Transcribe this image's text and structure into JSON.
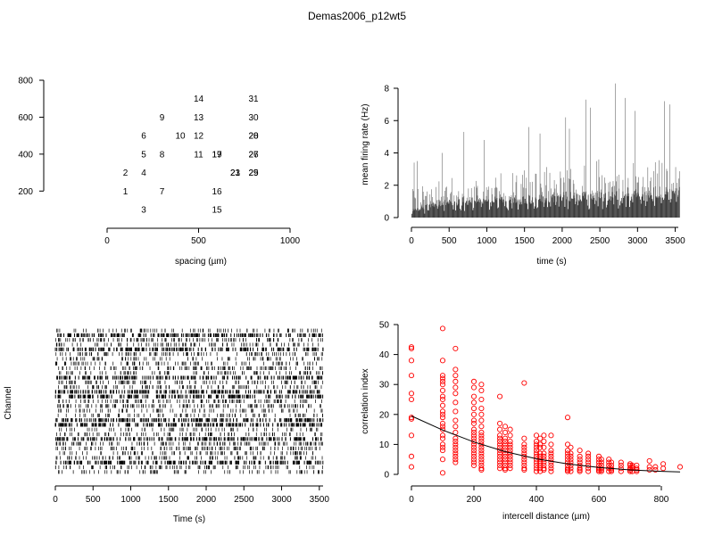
{
  "page": {
    "title": "Demas2006_p12wt5"
  },
  "chart_data": [
    {
      "type": "scatter",
      "panel": "electrode-layout",
      "xlabel": "spacing (µm)",
      "ylabel": "",
      "xlim": [
        0,
        1000
      ],
      "ylim": [
        100,
        800
      ],
      "x_ticks": [
        0,
        500,
        1000
      ],
      "y_ticks": [
        200,
        400,
        600,
        800
      ],
      "points": [
        {
          "label": "1",
          "x": 100,
          "y": 200
        },
        {
          "label": "2",
          "x": 100,
          "y": 300
        },
        {
          "label": "3",
          "x": 200,
          "y": 100
        },
        {
          "label": "4",
          "x": 200,
          "y": 300
        },
        {
          "label": "5",
          "x": 200,
          "y": 400
        },
        {
          "label": "6",
          "x": 200,
          "y": 500
        },
        {
          "label": "7",
          "x": 300,
          "y": 200
        },
        {
          "label": "8",
          "x": 300,
          "y": 400
        },
        {
          "label": "9",
          "x": 300,
          "y": 600
        },
        {
          "label": "10",
          "x": 400,
          "y": 500
        },
        {
          "label": "11",
          "x": 500,
          "y": 400
        },
        {
          "label": "12",
          "x": 500,
          "y": 500
        },
        {
          "label": "13",
          "x": 500,
          "y": 600
        },
        {
          "label": "14",
          "x": 500,
          "y": 700
        },
        {
          "label": "15",
          "x": 600,
          "y": 100
        },
        {
          "label": "16",
          "x": 600,
          "y": 200
        },
        {
          "label": "17",
          "x": 600,
          "y": 400
        },
        {
          "label": "19",
          "x": 600,
          "y": 400
        },
        {
          "label": "21",
          "x": 700,
          "y": 300
        },
        {
          "label": "23",
          "x": 700,
          "y": 300
        },
        {
          "label": "20",
          "x": 800,
          "y": 500
        },
        {
          "label": "28",
          "x": 800,
          "y": 500
        },
        {
          "label": "25",
          "x": 800,
          "y": 300
        },
        {
          "label": "29",
          "x": 800,
          "y": 300
        },
        {
          "label": "26",
          "x": 800,
          "y": 400
        },
        {
          "label": "27",
          "x": 800,
          "y": 400
        },
        {
          "label": "30",
          "x": 800,
          "y": 600
        },
        {
          "label": "31",
          "x": 800,
          "y": 700
        }
      ]
    },
    {
      "type": "bar",
      "panel": "firing-rate",
      "xlabel": "time (s)",
      "ylabel": "mean firing rate (Hz)",
      "xlim": [
        0,
        3600
      ],
      "ylim": [
        0,
        8.5
      ],
      "x_ticks": [
        0,
        500,
        1000,
        1500,
        2000,
        2500,
        3000,
        3500
      ],
      "y_ticks": [
        0,
        2,
        4,
        6,
        8
      ],
      "generated": {
        "bin_seconds": 10,
        "dark_low": [
          [
            0,
            0.5
          ],
          [
            400,
            1.2
          ],
          [
            1000,
            1.5
          ],
          [
            1500,
            1.4
          ],
          [
            2000,
            1.6
          ],
          [
            2500,
            1.7
          ],
          [
            3000,
            1.9
          ],
          [
            3550,
            2.0
          ]
        ],
        "typical_high": [
          [
            0,
            2.0
          ],
          [
            500,
            2.5
          ],
          [
            1000,
            3.0
          ],
          [
            1500,
            3.3
          ],
          [
            2000,
            3.6
          ],
          [
            2500,
            3.9
          ],
          [
            3000,
            4.0
          ],
          [
            3550,
            4.2
          ]
        ],
        "peaks": [
          {
            "t": 30,
            "v": 3.4
          },
          {
            "t": 70,
            "v": 3.5
          },
          {
            "t": 395,
            "v": 4.0
          },
          {
            "t": 690,
            "v": 5.3
          },
          {
            "t": 960,
            "v": 4.8
          },
          {
            "t": 1550,
            "v": 5.6
          },
          {
            "t": 1700,
            "v": 5.2
          },
          {
            "t": 2040,
            "v": 6.2
          },
          {
            "t": 2090,
            "v": 5.5
          },
          {
            "t": 2310,
            "v": 7.3
          },
          {
            "t": 2370,
            "v": 6.8
          },
          {
            "t": 2700,
            "v": 8.3
          },
          {
            "t": 2830,
            "v": 7.4
          },
          {
            "t": 2960,
            "v": 6.6
          },
          {
            "t": 3350,
            "v": 7.2
          },
          {
            "t": 3420,
            "v": 7.0
          },
          {
            "t": 3560,
            "v": 7.3
          }
        ]
      }
    },
    {
      "type": "raster",
      "panel": "spike-raster",
      "xlabel": "Time (s)",
      "ylabel": "Channel",
      "xlim": [
        0,
        3550
      ],
      "x_ticks": [
        0,
        500,
        1000,
        1500,
        2000,
        2500,
        3000,
        3500
      ],
      "channels": 31,
      "dense_channels": [
        1,
        4,
        10,
        13,
        14,
        19,
        20,
        23,
        28
      ]
    },
    {
      "type": "scatter",
      "panel": "correlation",
      "xlabel": "intercell distance (µm)",
      "ylabel": "correlation index",
      "xlim": [
        0,
        860
      ],
      "ylim": [
        0,
        50
      ],
      "x_ticks": [
        0,
        200,
        400,
        600,
        800
      ],
      "y_ticks": [
        0,
        10,
        20,
        30,
        40,
        50
      ],
      "point_color": "#ff0000",
      "groups": [
        {
          "x": 0,
          "values": [
            42.5,
            42.0,
            38,
            33,
            27,
            25,
            19,
            18.5,
            13,
            6,
            2.5
          ]
        },
        {
          "x": 100,
          "values": [
            48.7,
            38,
            33,
            32,
            31,
            30,
            28,
            26,
            25,
            23,
            21,
            20,
            19,
            17,
            16,
            15,
            13,
            12,
            10,
            9,
            8,
            5,
            0.5
          ]
        },
        {
          "x": 141,
          "values": [
            42,
            35,
            33,
            31,
            29,
            27,
            24,
            21,
            18,
            16,
            14,
            12,
            11,
            10,
            9,
            8,
            7,
            6,
            5,
            4
          ]
        },
        {
          "x": 200,
          "values": [
            31,
            29,
            26,
            24,
            22,
            20,
            18,
            17,
            15,
            14,
            13,
            12,
            11,
            10,
            9,
            8,
            7,
            6,
            5,
            4,
            3
          ]
        },
        {
          "x": 224,
          "values": [
            30,
            28,
            25,
            22,
            20,
            18,
            16,
            14,
            13,
            12,
            11,
            10,
            9,
            8,
            7,
            6,
            5,
            4,
            3,
            2,
            1.5
          ]
        },
        {
          "x": 283,
          "values": [
            26,
            17,
            15,
            13,
            12,
            11,
            10,
            9,
            8,
            7,
            6,
            5,
            4,
            3,
            2
          ]
        },
        {
          "x": 300,
          "values": [
            16,
            14,
            12,
            11,
            10,
            9,
            8,
            7,
            6,
            5,
            4,
            3,
            2,
            1.5
          ]
        },
        {
          "x": 316,
          "values": [
            15,
            13,
            11,
            10,
            9,
            8,
            7,
            6,
            5,
            4,
            3,
            2
          ]
        },
        {
          "x": 361,
          "values": [
            30.5,
            12,
            10,
            9,
            8,
            7,
            6,
            5,
            4,
            3,
            2,
            1.5
          ]
        },
        {
          "x": 400,
          "values": [
            13,
            11,
            10,
            9,
            8,
            7,
            6,
            5,
            4,
            3,
            2,
            1
          ]
        },
        {
          "x": 412,
          "values": [
            12,
            10,
            9,
            7,
            6,
            5,
            4,
            3,
            2,
            1
          ]
        },
        {
          "x": 424,
          "values": [
            13,
            11,
            9,
            7,
            6,
            5,
            4,
            3,
            2,
            1.5
          ]
        },
        {
          "x": 447,
          "values": [
            13,
            10,
            8,
            7,
            6,
            5,
            4,
            3,
            2,
            1
          ]
        },
        {
          "x": 500,
          "values": [
            19,
            10,
            8,
            7,
            6,
            5,
            4,
            3,
            2,
            1.5,
            1
          ]
        },
        {
          "x": 510,
          "values": [
            9,
            7,
            6,
            5,
            4,
            3,
            2,
            1
          ]
        },
        {
          "x": 539,
          "values": [
            8,
            6,
            5,
            4,
            3,
            2,
            1.5,
            1
          ]
        },
        {
          "x": 566,
          "values": [
            7,
            6,
            5,
            4,
            3,
            2,
            1
          ]
        },
        {
          "x": 600,
          "values": [
            6,
            5,
            4,
            3,
            2,
            1.5,
            1
          ]
        },
        {
          "x": 608,
          "values": [
            5,
            4,
            3,
            2,
            1.5,
            1
          ]
        },
        {
          "x": 632,
          "values": [
            5,
            4,
            3,
            2,
            1
          ]
        },
        {
          "x": 640,
          "values": [
            4,
            3,
            2,
            1.5,
            1
          ]
        },
        {
          "x": 671,
          "values": [
            4,
            3,
            2,
            1
          ]
        },
        {
          "x": 700,
          "values": [
            3.5,
            3,
            2,
            1.5,
            1
          ]
        },
        {
          "x": 707,
          "values": [
            3,
            2.5,
            2,
            1
          ]
        },
        {
          "x": 721,
          "values": [
            3,
            2,
            1.5,
            1
          ]
        },
        {
          "x": 762,
          "values": [
            4.5,
            2.5,
            1.5
          ]
        },
        {
          "x": 781,
          "values": [
            2.5,
            1.5
          ]
        },
        {
          "x": 806,
          "values": [
            3.5,
            2
          ]
        },
        {
          "x": 860,
          "values": [
            2.5
          ]
        }
      ],
      "fit": [
        [
          0,
          19.5
        ],
        [
          100,
          14.8
        ],
        [
          200,
          10.8
        ],
        [
          300,
          7.6
        ],
        [
          400,
          5.2
        ],
        [
          500,
          3.5
        ],
        [
          600,
          2.3
        ],
        [
          700,
          1.5
        ],
        [
          800,
          1.0
        ],
        [
          860,
          0.8
        ]
      ]
    }
  ]
}
